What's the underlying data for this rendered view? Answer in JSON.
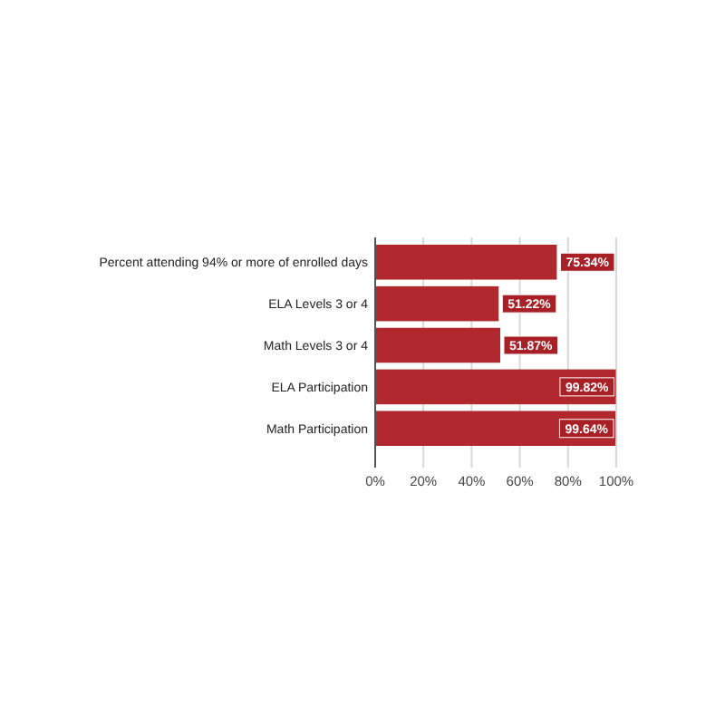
{
  "chart_data": {
    "type": "bar",
    "orientation": "horizontal",
    "categories": [
      "Percent attending 94% or more of enrolled days",
      "ELA Levels 3 or 4",
      "Math Levels 3 or 4",
      "ELA Participation",
      "Math Participation"
    ],
    "values": [
      75.34,
      51.22,
      51.87,
      99.82,
      99.64
    ],
    "value_labels": [
      "75.34%",
      "51.22%",
      "51.87%",
      "99.82%",
      "99.64%"
    ],
    "color": "#b0272d",
    "xlim": [
      0,
      100
    ],
    "xticks": [
      {
        "value": 0,
        "label": "0%"
      },
      {
        "value": 20,
        "label": "20%"
      },
      {
        "value": 40,
        "label": "40%"
      },
      {
        "value": 60,
        "label": "60%"
      },
      {
        "value": 80,
        "label": "80%"
      },
      {
        "value": 100,
        "label": "100%"
      }
    ],
    "grid": "x"
  }
}
